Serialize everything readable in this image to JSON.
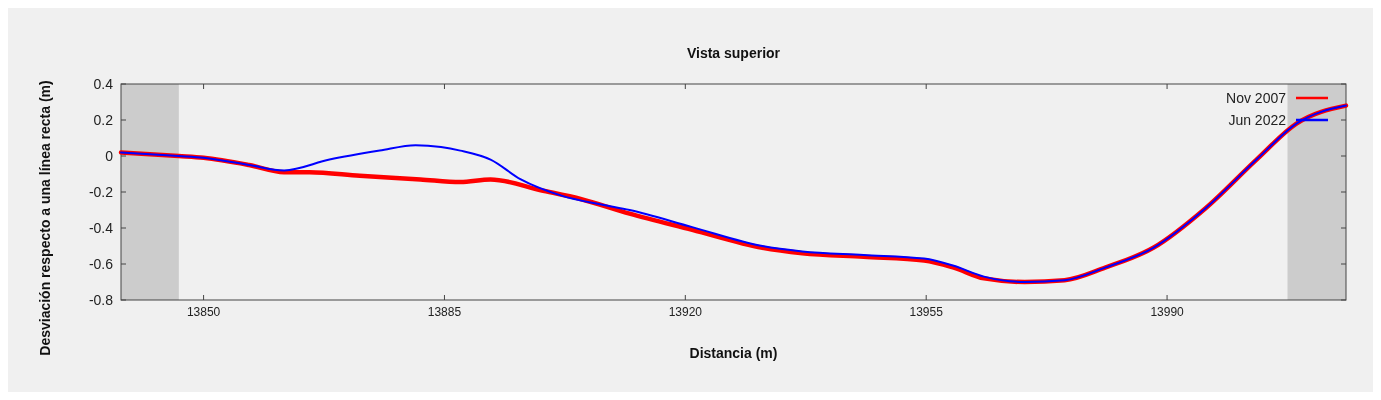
{
  "chart_data": {
    "type": "line",
    "title": "Vista superior",
    "xlabel": "Distancia (m)",
    "ylabel": "Desviación respecto a una línea recta (m)",
    "xlim": [
      13838,
      14016
    ],
    "xticks": [
      13850,
      13885,
      13920,
      13955,
      13990
    ],
    "ylim": [
      -0.8,
      0.4
    ],
    "yticks": [
      -0.8,
      -0.6,
      -0.4,
      -0.2,
      0,
      0.2,
      0.4
    ],
    "grid": false,
    "legend": "top right",
    "line_style": "solid",
    "bands": [
      {
        "axis": "x",
        "from": 13838,
        "to": 13846.4,
        "color": "#cccccc"
      },
      {
        "axis": "x",
        "from": 14007.5,
        "to": 14016,
        "color": "#cccccc"
      }
    ],
    "series": [
      {
        "name": "Nov 2007",
        "color": "#ff0000",
        "x": [
          13838,
          13846.4,
          13850,
          13856.6,
          13861.7,
          13865.4,
          13872.7,
          13881.5,
          13887.3,
          13891.7,
          13899,
          13904.9,
          13911.9,
          13921,
          13931.2,
          13937,
          13945.9,
          13954.7,
          13959,
          13963.4,
          13969.3,
          13975.1,
          13981,
          13988,
          13995.6,
          14003,
          14008.8,
          14016
        ],
        "values": [
          0.02,
          0,
          -0.01,
          -0.05,
          -0.09,
          -0.09,
          -0.11,
          -0.13,
          -0.145,
          -0.13,
          -0.19,
          -0.24,
          -0.32,
          -0.41,
          -0.51,
          -0.54,
          -0.56,
          -0.58,
          -0.62,
          -0.68,
          -0.7,
          -0.69,
          -0.62,
          -0.51,
          -0.29,
          -0.02,
          0.18,
          0.28
        ]
      },
      {
        "name": "Jun 2022",
        "color": "#0000ff",
        "x": [
          13838,
          13846.4,
          13850,
          13856.6,
          13861.7,
          13868.3,
          13875.6,
          13880.8,
          13884.5,
          13887.3,
          13891.7,
          13896.1,
          13902,
          13907.8,
          13911.9,
          13921,
          13931.2,
          13937,
          13945.9,
          13954.7,
          13959,
          13963.4,
          13969.3,
          13975.1,
          13981,
          13988,
          13995.6,
          14003,
          14008.8,
          14016
        ],
        "values": [
          0.02,
          0,
          -0.01,
          -0.05,
          -0.08,
          -0.02,
          0.03,
          0.06,
          0.05,
          0.03,
          -0.02,
          -0.13,
          -0.22,
          -0.27,
          -0.3,
          -0.395,
          -0.5,
          -0.53,
          -0.55,
          -0.57,
          -0.61,
          -0.67,
          -0.7,
          -0.69,
          -0.62,
          -0.51,
          -0.29,
          -0.02,
          0.18,
          0.28
        ]
      }
    ]
  }
}
